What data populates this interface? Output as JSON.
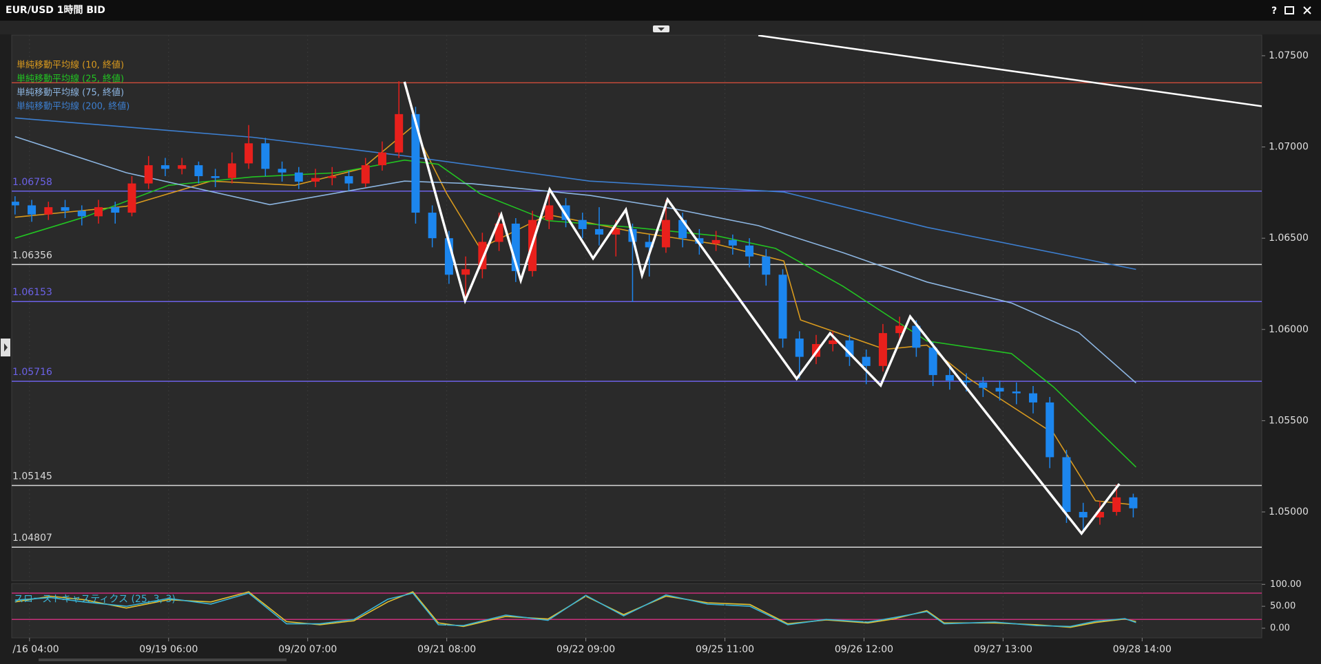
{
  "window": {
    "help_button": "?"
  },
  "chart_data": [
    {
      "type": "candlestick",
      "title": "EUR/USD 1時間 BID",
      "x": [
        0,
        3,
        6,
        9,
        12,
        15,
        18,
        21,
        24,
        27,
        30,
        33,
        36,
        39,
        42,
        45,
        48,
        51,
        54,
        57,
        60,
        63,
        66,
        69,
        72,
        75,
        78,
        81,
        84,
        87,
        90,
        93,
        96,
        99,
        102,
        105,
        108,
        111,
        114,
        117,
        120,
        123,
        126,
        129,
        132,
        135,
        138,
        141,
        144,
        147,
        150,
        153,
        156,
        159,
        162,
        165,
        168,
        171,
        174,
        177,
        180,
        183,
        186,
        189,
        192,
        195,
        198,
        201
      ],
      "open": [
        1.067,
        1.0668,
        1.0663,
        1.0667,
        1.0665,
        1.0662,
        1.0667,
        1.0664,
        1.068,
        1.069,
        1.0688,
        1.069,
        1.0684,
        1.0683,
        1.0691,
        1.0702,
        1.0688,
        1.0686,
        1.0681,
        1.0683,
        1.0684,
        1.068,
        1.069,
        1.0697,
        1.0718,
        1.0664,
        1.065,
        1.063,
        1.0633,
        1.0648,
        1.0658,
        1.0632,
        1.066,
        1.0668,
        1.066,
        1.0655,
        1.0652,
        1.0655,
        1.0648,
        1.0645,
        1.066,
        1.065,
        1.0647,
        1.0649,
        1.0646,
        1.064,
        1.063,
        1.0595,
        1.0585,
        1.0592,
        1.0594,
        1.0585,
        1.058,
        1.0598,
        1.0602,
        1.059,
        1.0575,
        1.0572,
        1.0571,
        1.0568,
        1.0566,
        1.0565,
        1.056,
        1.053,
        1.05,
        1.0497,
        1.05,
        1.0508
      ],
      "high": [
        1.0673,
        1.0671,
        1.067,
        1.0671,
        1.0668,
        1.0671,
        1.067,
        1.0684,
        1.0695,
        1.0694,
        1.0694,
        1.0692,
        1.0688,
        1.0697,
        1.0712,
        1.0705,
        1.0692,
        1.0689,
        1.0688,
        1.0689,
        1.0687,
        1.0694,
        1.0703,
        1.0736,
        1.0722,
        1.0668,
        1.0654,
        1.064,
        1.0653,
        1.0664,
        1.0661,
        1.0665,
        1.0677,
        1.0672,
        1.0664,
        1.0667,
        1.066,
        1.0658,
        1.0652,
        1.0671,
        1.0664,
        1.0655,
        1.0654,
        1.0652,
        1.065,
        1.0644,
        1.0633,
        1.0599,
        1.0597,
        1.0599,
        1.0597,
        1.0589,
        1.0603,
        1.0607,
        1.0605,
        1.0593,
        1.0579,
        1.0576,
        1.0574,
        1.0572,
        1.0571,
        1.0569,
        1.0563,
        1.0534,
        1.0505,
        1.0506,
        1.0515,
        1.051
      ],
      "low": [
        1.0663,
        1.0659,
        1.066,
        1.0661,
        1.0657,
        1.0658,
        1.0658,
        1.0662,
        1.0677,
        1.0684,
        1.0685,
        1.068,
        1.0678,
        1.068,
        1.0688,
        1.0684,
        1.0681,
        1.0677,
        1.0678,
        1.0679,
        1.0676,
        1.0678,
        1.0687,
        1.0694,
        1.0658,
        1.0645,
        1.0625,
        1.0616,
        1.0628,
        1.0643,
        1.0626,
        1.0629,
        1.0655,
        1.0656,
        1.065,
        1.0646,
        1.064,
        1.0615,
        1.0629,
        1.0642,
        1.0645,
        1.0641,
        1.0643,
        1.0641,
        1.0634,
        1.0624,
        1.059,
        1.0573,
        1.0581,
        1.0588,
        1.058,
        1.057,
        1.0577,
        1.0594,
        1.0585,
        1.0569,
        1.0567,
        1.0566,
        1.0563,
        1.0561,
        1.0559,
        1.0554,
        1.0524,
        1.0494,
        1.0489,
        1.0493,
        1.0498,
        1.0497
      ],
      "close": [
        1.0668,
        1.0663,
        1.0667,
        1.0665,
        1.0662,
        1.0667,
        1.0664,
        1.068,
        1.069,
        1.0688,
        1.069,
        1.0684,
        1.0683,
        1.0691,
        1.0702,
        1.0688,
        1.0686,
        1.0681,
        1.0683,
        1.0684,
        1.068,
        1.069,
        1.0697,
        1.0718,
        1.0664,
        1.065,
        1.063,
        1.0633,
        1.0648,
        1.0658,
        1.0632,
        1.066,
        1.0668,
        1.066,
        1.0655,
        1.0652,
        1.0655,
        1.0648,
        1.0645,
        1.066,
        1.065,
        1.0647,
        1.0649,
        1.0646,
        1.064,
        1.063,
        1.0595,
        1.0585,
        1.0592,
        1.0594,
        1.0585,
        1.058,
        1.0598,
        1.0602,
        1.059,
        1.0575,
        1.0572,
        1.0571,
        1.0568,
        1.0566,
        1.0565,
        1.056,
        1.053,
        1.05,
        1.0497,
        1.05,
        1.0508,
        1.0502
      ],
      "up_color": "#e8201c",
      "down_color": "#1c86ee",
      "xlim": [
        -0.6,
        224.1
      ],
      "ylim": [
        1.04623,
        1.07613
      ],
      "yticks": [
        {
          "value": 1.05,
          "label": "1.05000"
        },
        {
          "value": 1.055,
          "label": "1.05500"
        },
        {
          "value": 1.06,
          "label": "1.06000"
        },
        {
          "value": 1.065,
          "label": "1.06500"
        },
        {
          "value": 1.07,
          "label": "1.07000"
        },
        {
          "value": 1.075,
          "label": "1.07500"
        }
      ],
      "series": [
        {
          "name": "単純移動平均線 (10, 終値)",
          "color": "#d99a1e",
          "x": [
            0,
            20,
            35.2,
            50.3,
            62.4,
            71.5,
            77.6,
            83.6,
            95.8,
            110.9,
            126.1,
            138.2,
            141.2,
            156.4,
            163.9,
            171.5,
            186.7,
            194.2,
            201.5
          ],
          "values": [
            1.06615,
            1.06675,
            1.06813,
            1.0679,
            1.06882,
            1.07113,
            1.06744,
            1.06444,
            1.06629,
            1.06537,
            1.06467,
            1.06375,
            1.06052,
            1.05891,
            1.05914,
            1.0573,
            1.0543,
            1.05061,
            1.05038
          ]
        },
        {
          "name": "単純移動平均線 (25, 終値)",
          "color": "#22c422",
          "x": [
            0,
            12.4,
            27.6,
            42.7,
            57.9,
            70,
            76.1,
            83.6,
            95.8,
            110.9,
            126.1,
            136.7,
            148.8,
            163.9,
            179.1,
            186.7,
            201.5
          ],
          "values": [
            1.065,
            1.06615,
            1.0679,
            1.06836,
            1.06859,
            1.06928,
            1.06905,
            1.06744,
            1.06596,
            1.0656,
            1.06513,
            1.06444,
            1.06237,
            1.05937,
            1.05868,
            1.05684,
            1.05246
          ]
        },
        {
          "name": "単純移動平均線 (75, 終値)",
          "color": "#8db6e2",
          "x": [
            0,
            20,
            45.8,
            70,
            82.1,
            103.3,
            118.5,
            133.6,
            148.8,
            163.9,
            179.1,
            191.2,
            201.5
          ],
          "values": [
            1.07057,
            1.06859,
            1.06684,
            1.06813,
            1.06799,
            1.06735,
            1.06661,
            1.06569,
            1.06421,
            1.0626,
            1.06145,
            1.05983,
            1.05707
          ]
        },
        {
          "name": "単純移動平均線 (200, 終値)",
          "color": "#3d7fd0",
          "x": [
            0,
            42.7,
            70,
            103.3,
            138.2,
            163.9,
            201.5
          ],
          "values": [
            1.07159,
            1.07053,
            1.06951,
            1.06813,
            1.06753,
            1.0656,
            1.06329
          ]
        }
      ],
      "zigzag": {
        "color": "#ffffff",
        "x": [
          70,
          80.9,
          87.4,
          90.9,
          96.1,
          103.9,
          109.8,
          112.7,
          117.3,
          140.5,
          146.5,
          155.6,
          160.9,
          191.7,
          198.5
        ],
        "values": [
          1.07357,
          1.06158,
          1.06629,
          1.06269,
          1.06767,
          1.06389,
          1.06656,
          1.06297,
          1.06712,
          1.0573,
          1.05979,
          1.05693,
          1.06071,
          1.04882,
          1.05154
        ]
      },
      "trendline": {
        "color": "#ffffff",
        "x": [
          133.6,
          224.1
        ],
        "values": [
          1.07611,
          1.07223
        ]
      },
      "levels": [
        {
          "value": 1.06758,
          "color": "#6c62e8"
        },
        {
          "value": 1.06356,
          "color": "#d8d8d8"
        },
        {
          "value": 1.06153,
          "color": "#6c62e8"
        },
        {
          "value": 1.05716,
          "color": "#6c62e8"
        },
        {
          "value": 1.05145,
          "color": "#d8d8d8"
        },
        {
          "value": 1.04807,
          "color": "#d8d8d8"
        }
      ],
      "unlabeled_levels": [
        {
          "value": 1.07352,
          "color": "#e0503c"
        }
      ]
    },
    {
      "type": "line",
      "title": "スローストキャスティクス (25, 3, 3)",
      "x": [
        0,
        6.4,
        12.4,
        20,
        27.6,
        35.2,
        42,
        48.8,
        54.8,
        60.9,
        67,
        71.5,
        76.1,
        80.6,
        88.2,
        95.8,
        102.6,
        109.4,
        117,
        124.5,
        132.1,
        138.9,
        145.8,
        153.3,
        157.9,
        163.9,
        167,
        176.1,
        183.6,
        189.7,
        194.2,
        199.5,
        201.5
      ],
      "series": [
        {
          "color": "#e2c232",
          "values": [
            60,
            73,
            65,
            46,
            65,
            60,
            83,
            15,
            8,
            17,
            60,
            83,
            12,
            4,
            27,
            21,
            73,
            31,
            73,
            58,
            54,
            10,
            19,
            12,
            21,
            40,
            12,
            12,
            8,
            2,
            13,
            21,
            15
          ]
        },
        {
          "color": "#3ab4d6",
          "values": [
            64,
            70,
            60,
            50,
            68,
            55,
            80,
            10,
            10,
            20,
            66,
            80,
            8,
            6,
            30,
            18,
            75,
            28,
            76,
            55,
            50,
            8,
            20,
            14,
            24,
            38,
            10,
            14,
            6,
            4,
            16,
            22,
            13
          ]
        }
      ],
      "bands": [
        80,
        20
      ],
      "band_color": "#c8307a",
      "xlim": [
        -0.6,
        224.1
      ],
      "ylim": [
        -22,
        102
      ],
      "yticks": [
        {
          "value": 0,
          "label": "0.00"
        },
        {
          "value": 50,
          "label": "50.00"
        },
        {
          "value": 100,
          "label": "100.00"
        }
      ],
      "xticks": [
        {
          "value": 2.6,
          "label": "/16 04:00"
        },
        {
          "value": 27.6,
          "label": "09/19 06:00"
        },
        {
          "value": 52.6,
          "label": "09/20 07:00"
        },
        {
          "value": 77.6,
          "label": "09/21 08:00"
        },
        {
          "value": 102.6,
          "label": "09/22 09:00"
        },
        {
          "value": 127.6,
          "label": "09/25 11:00"
        },
        {
          "value": 152.6,
          "label": "09/26 12:00"
        },
        {
          "value": 177.6,
          "label": "09/27 13:00"
        },
        {
          "value": 202.6,
          "label": "09/28 14:00"
        }
      ]
    }
  ]
}
